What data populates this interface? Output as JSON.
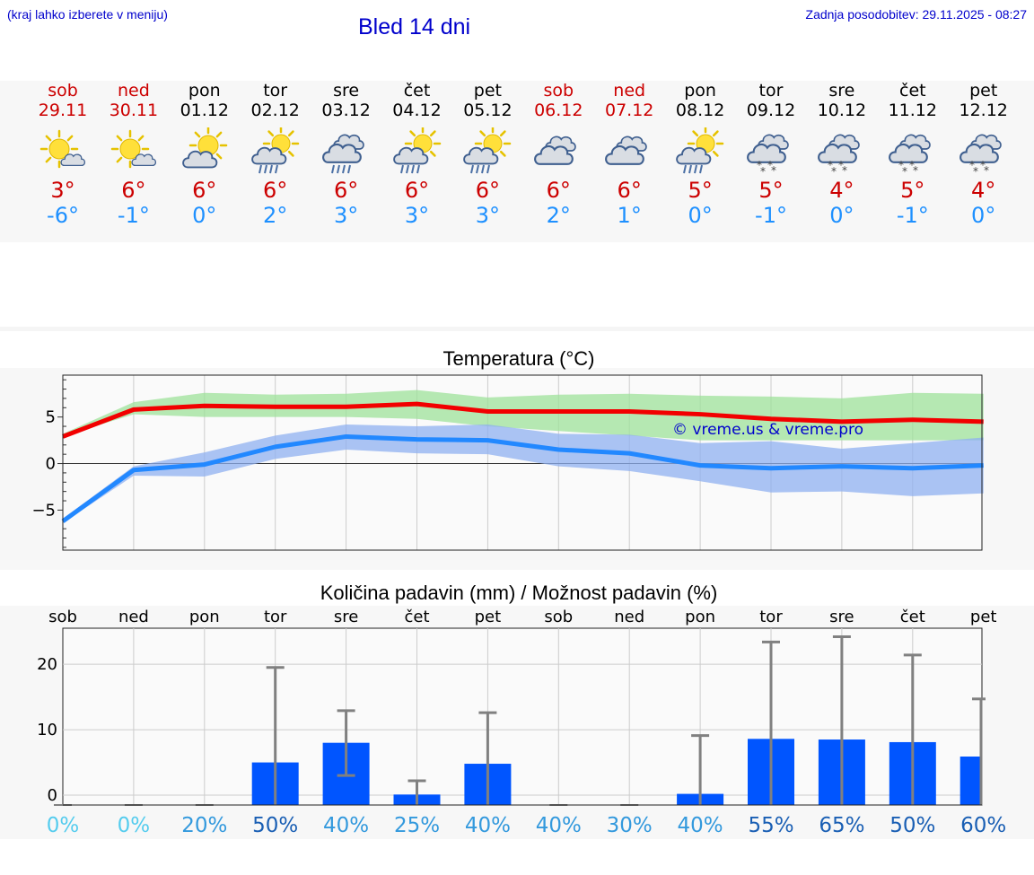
{
  "header": {
    "menu_note": "(kraj lahko izberete v meniju)",
    "title": "Bled 14 dni",
    "updated": "Zadnja posodobitev: 29.11.2025 - 08:27"
  },
  "colors": {
    "max": "#cc0000",
    "min": "#1e90ff",
    "link": "#0000cc",
    "bar": "#0055ff"
  },
  "days": [
    {
      "name": "sob",
      "date": "29.11",
      "weekend": true,
      "icon": "sun-cloud-icon",
      "tmax": "3°",
      "tmin": "-6°"
    },
    {
      "name": "ned",
      "date": "30.11",
      "weekend": true,
      "icon": "sun-cloud-icon",
      "tmax": "6°",
      "tmin": "-1°"
    },
    {
      "name": "pon",
      "date": "01.12",
      "weekend": false,
      "icon": "partly-cloudy-icon",
      "tmax": "6°",
      "tmin": "0°"
    },
    {
      "name": "tor",
      "date": "02.12",
      "weekend": false,
      "icon": "sun-rain-icon",
      "tmax": "6°",
      "tmin": "2°"
    },
    {
      "name": "sre",
      "date": "03.12",
      "weekend": false,
      "icon": "cloud-rain-icon",
      "tmax": "6°",
      "tmin": "3°"
    },
    {
      "name": "čet",
      "date": "04.12",
      "weekend": false,
      "icon": "sun-rain-icon",
      "tmax": "6°",
      "tmin": "3°"
    },
    {
      "name": "pet",
      "date": "05.12",
      "weekend": false,
      "icon": "sun-rain-icon",
      "tmax": "6°",
      "tmin": "3°"
    },
    {
      "name": "sob",
      "date": "06.12",
      "weekend": true,
      "icon": "cloudy-icon",
      "tmax": "6°",
      "tmin": "2°"
    },
    {
      "name": "ned",
      "date": "07.12",
      "weekend": true,
      "icon": "cloudy-icon",
      "tmax": "6°",
      "tmin": "1°"
    },
    {
      "name": "pon",
      "date": "08.12",
      "weekend": false,
      "icon": "sun-rain-icon",
      "tmax": "5°",
      "tmin": "0°"
    },
    {
      "name": "tor",
      "date": "09.12",
      "weekend": false,
      "icon": "cloud-snow-icon",
      "tmax": "5°",
      "tmin": "-1°"
    },
    {
      "name": "sre",
      "date": "10.12",
      "weekend": false,
      "icon": "cloud-snow-icon",
      "tmax": "4°",
      "tmin": "0°"
    },
    {
      "name": "čet",
      "date": "11.12",
      "weekend": false,
      "icon": "cloud-snow-icon",
      "tmax": "5°",
      "tmin": "-1°"
    },
    {
      "name": "pet",
      "date": "12.12",
      "weekend": false,
      "icon": "cloud-snow-icon",
      "tmax": "4°",
      "tmin": "0°"
    }
  ],
  "chart_data": [
    {
      "type": "line",
      "title": "Temperatura (°C)",
      "watermark": "© vreme.us & vreme.pro",
      "x": [
        "sob",
        "ned",
        "pon",
        "tor",
        "sre",
        "čet",
        "pet",
        "sob",
        "ned",
        "pon",
        "tor",
        "sre",
        "čet",
        "pet"
      ],
      "ylim": [
        -9.3,
        9.5
      ],
      "yticks": [
        -5,
        0,
        5
      ],
      "ytick_labels": [
        "−5",
        "0",
        "5"
      ],
      "series": [
        {
          "name": "max",
          "values": [
            2.9,
            5.8,
            6.2,
            6.1,
            6.1,
            6.4,
            5.6,
            5.6,
            5.6,
            5.3,
            4.8,
            4.5,
            4.7,
            4.5
          ],
          "band_low": [
            2.9,
            5.3,
            5.0,
            5.0,
            5.0,
            4.8,
            4.0,
            3.5,
            3.0,
            2.5,
            2.5,
            2.5,
            2.5,
            2.5
          ],
          "band_high": [
            3.2,
            6.6,
            7.6,
            7.4,
            7.5,
            7.9,
            7.1,
            7.4,
            7.5,
            7.3,
            7.2,
            7.0,
            7.6,
            7.5
          ]
        },
        {
          "name": "min",
          "values": [
            -6.2,
            -0.7,
            -0.1,
            1.8,
            2.9,
            2.6,
            2.5,
            1.5,
            1.1,
            -0.2,
            -0.5,
            -0.3,
            -0.5,
            -0.2
          ],
          "band_low": [
            -6.4,
            -1.3,
            -1.4,
            0.5,
            1.5,
            1.1,
            1.0,
            -0.3,
            -0.8,
            -1.9,
            -3.1,
            -3.0,
            -3.5,
            -3.2
          ],
          "band_high": [
            -5.9,
            -0.3,
            1.2,
            3.0,
            4.2,
            4.0,
            4.2,
            3.2,
            3.1,
            2.2,
            2.4,
            1.6,
            2.2,
            2.8
          ]
        }
      ]
    },
    {
      "type": "bar",
      "title": "Količina padavin (mm) / Možnost padavin (%)",
      "categories": [
        "sob",
        "ned",
        "pon",
        "tor",
        "sre",
        "čet",
        "pet",
        "sob",
        "ned",
        "pon",
        "tor",
        "sre",
        "čet",
        "pet"
      ],
      "values": [
        0,
        0,
        0,
        5,
        8,
        0.1,
        4.8,
        0,
        0,
        0.2,
        8.6,
        8.5,
        8.1,
        5.9
      ],
      "range_low": [
        0,
        0,
        0,
        0,
        3,
        0,
        0,
        0,
        0,
        0,
        0,
        0,
        0,
        0
      ],
      "range_high": [
        0,
        0,
        0,
        19.5,
        12.9,
        2.2,
        12.6,
        0,
        0,
        9.1,
        23.4,
        24.2,
        21.4,
        14.7
      ],
      "probability": [
        "0%",
        "0%",
        "20%",
        "50%",
        "40%",
        "25%",
        "40%",
        "40%",
        "30%",
        "40%",
        "55%",
        "65%",
        "50%",
        "60%"
      ],
      "ylim": [
        -1.5,
        25.5
      ],
      "yticks": [
        0,
        10,
        20
      ],
      "ytick_labels": [
        "0",
        "10",
        "20"
      ]
    }
  ]
}
